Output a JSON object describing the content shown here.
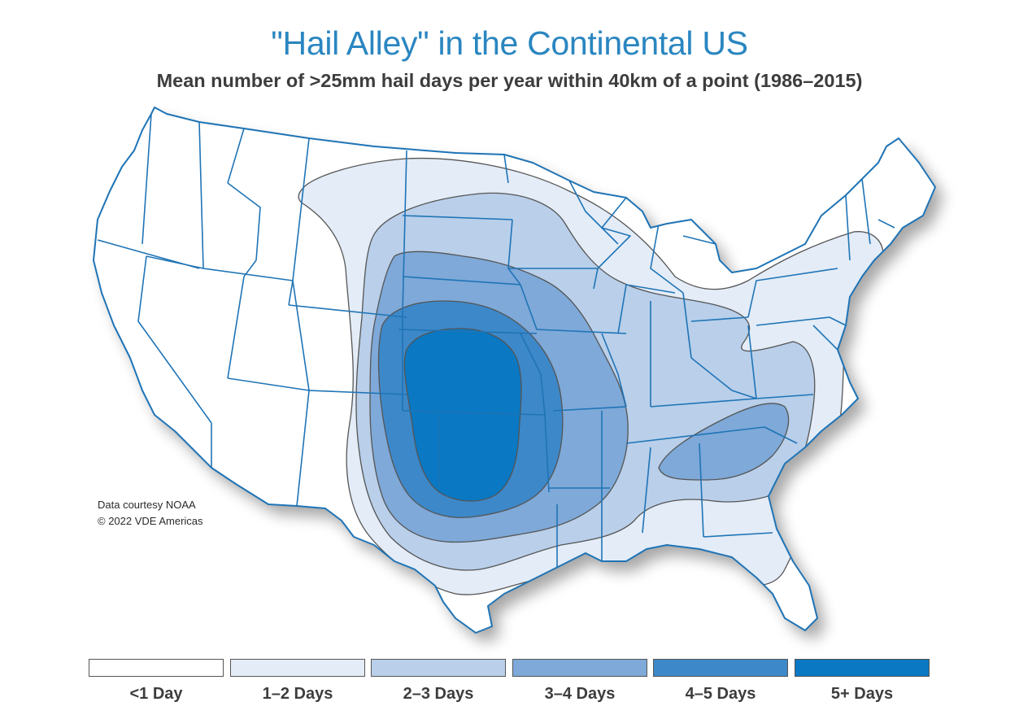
{
  "title": "\"Hail Alley\" in the Continental US",
  "subtitle": "Mean number of >25mm hail days per year within 40km of a point (1986–2015)",
  "credits": {
    "line1": "Data courtesy NOAA",
    "line2": "© 2022 VDE Americas"
  },
  "legend": {
    "items": [
      {
        "label": "<1 Day",
        "color": "#ffffff"
      },
      {
        "label": "1–2 Days",
        "color": "#e3ecf7"
      },
      {
        "label": "2–3 Days",
        "color": "#b9cfea"
      },
      {
        "label": "3–4 Days",
        "color": "#7ea9d8"
      },
      {
        "label": "4–5 Days",
        "color": "#3d88c9"
      },
      {
        "label": "5+ Days",
        "color": "#0a78c2"
      }
    ]
  },
  "map": {
    "state_line_color": "#1f74b6",
    "contour_color": "#555555"
  }
}
